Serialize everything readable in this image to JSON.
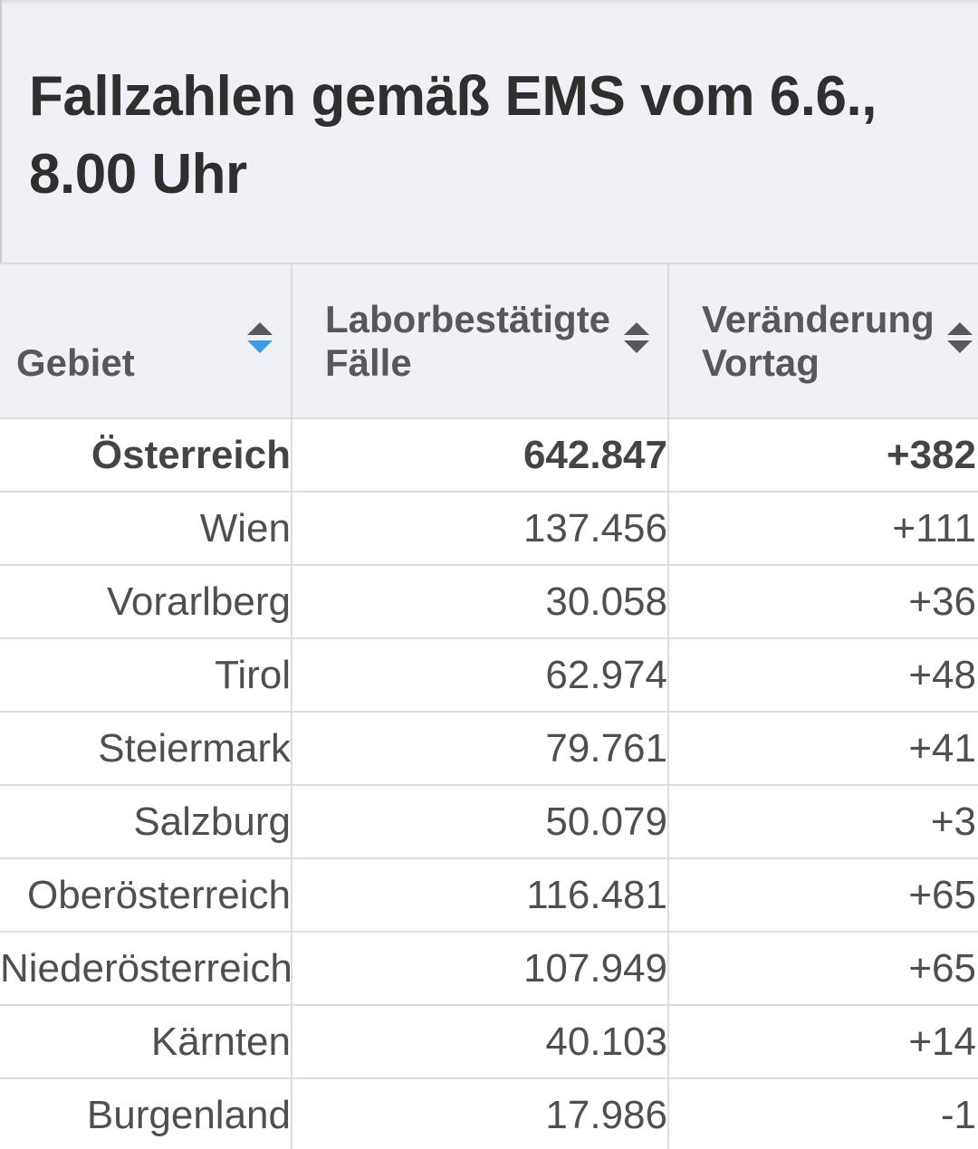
{
  "title": "Fallzahlen gemäß EMS vom 6.6., 8.00 Uhr",
  "columns": [
    {
      "label_line1": "Gebiet",
      "label_line2": "",
      "sort_state": "descending-active"
    },
    {
      "label_line1": "Laborbestätigte",
      "label_line2": "Fälle",
      "sort_state": "unsorted"
    },
    {
      "label_line1": "Veränderung",
      "label_line2": "Vortag",
      "sort_state": "unsorted"
    }
  ],
  "rows": [
    {
      "gebiet": "Österreich",
      "faelle": "642.847",
      "veraenderung": "+382",
      "total": true
    },
    {
      "gebiet": "Wien",
      "faelle": "137.456",
      "veraenderung": "+111"
    },
    {
      "gebiet": "Vorarlberg",
      "faelle": "30.058",
      "veraenderung": "+36"
    },
    {
      "gebiet": "Tirol",
      "faelle": "62.974",
      "veraenderung": "+48"
    },
    {
      "gebiet": "Steiermark",
      "faelle": "79.761",
      "veraenderung": "+41"
    },
    {
      "gebiet": "Salzburg",
      "faelle": "50.079",
      "veraenderung": "+3"
    },
    {
      "gebiet": "Oberösterreich",
      "faelle": "116.481",
      "veraenderung": "+65"
    },
    {
      "gebiet": "Niederösterreich",
      "faelle": "107.949",
      "veraenderung": "+65"
    },
    {
      "gebiet": "Kärnten",
      "faelle": "40.103",
      "veraenderung": "+14"
    },
    {
      "gebiet": "Burgenland",
      "faelle": "17.986",
      "veraenderung": "-1"
    }
  ],
  "colors": {
    "background": "#ffffff",
    "header_background": "#f0f1f6",
    "title_text": "#2f2f30",
    "header_text": "#58585b",
    "cell_text": "#4f4f52",
    "grid_line": "#dcdce0",
    "sort_active": "#3d9be9",
    "sort_inactive": "#58585b"
  },
  "icons": {
    "sort": "sort-up-down-icon"
  }
}
